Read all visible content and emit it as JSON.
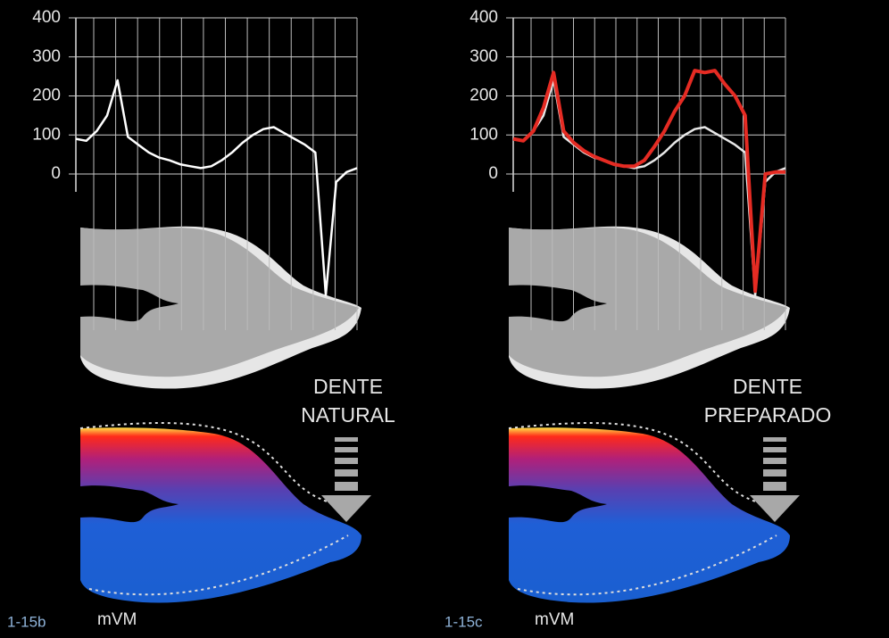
{
  "chart_data": [
    {
      "type": "line",
      "categories": [
        null,
        null,
        null,
        null,
        null,
        null,
        null,
        null,
        null,
        null,
        null,
        null,
        null,
        null,
        null,
        null,
        null,
        null,
        null,
        null,
        null,
        null,
        null,
        null,
        null,
        null,
        null,
        null
      ],
      "ylim": [
        -400,
        400
      ],
      "yticks": [
        0,
        100,
        200,
        300,
        400
      ],
      "series": [
        {
          "color": "#ffffff",
          "values": [
            90,
            85,
            110,
            150,
            240,
            95,
            75,
            55,
            42,
            35,
            25,
            20,
            15,
            20,
            35,
            55,
            80,
            100,
            115,
            120,
            105,
            90,
            75,
            55,
            -310,
            -20,
            5,
            15
          ]
        }
      ],
      "annotation": [
        "DENTE",
        "NATURAL"
      ],
      "unit_label": "mVM",
      "figure_label": "1-15b"
    },
    {
      "type": "line",
      "categories": [
        null,
        null,
        null,
        null,
        null,
        null,
        null,
        null,
        null,
        null,
        null,
        null,
        null,
        null,
        null,
        null,
        null,
        null,
        null,
        null,
        null,
        null,
        null,
        null,
        null,
        null,
        null,
        null
      ],
      "ylim": [
        -400,
        400
      ],
      "yticks": [
        0,
        100,
        200,
        300,
        400
      ],
      "series": [
        {
          "color": "#e8e8e8",
          "values": [
            90,
            85,
            110,
            150,
            240,
            95,
            75,
            55,
            42,
            35,
            25,
            20,
            15,
            20,
            35,
            55,
            80,
            100,
            115,
            120,
            105,
            90,
            75,
            55,
            -310,
            -20,
            5,
            15
          ]
        },
        {
          "color": "#e52b23",
          "values": [
            90,
            85,
            110,
            170,
            260,
            110,
            80,
            60,
            45,
            35,
            25,
            20,
            20,
            35,
            70,
            110,
            160,
            200,
            265,
            260,
            265,
            230,
            200,
            150,
            -300,
            0,
            5,
            5
          ]
        }
      ],
      "annotation": [
        "DENTE",
        "PREPARADO"
      ],
      "unit_label": "mVM",
      "figure_label": "1-15c"
    }
  ]
}
